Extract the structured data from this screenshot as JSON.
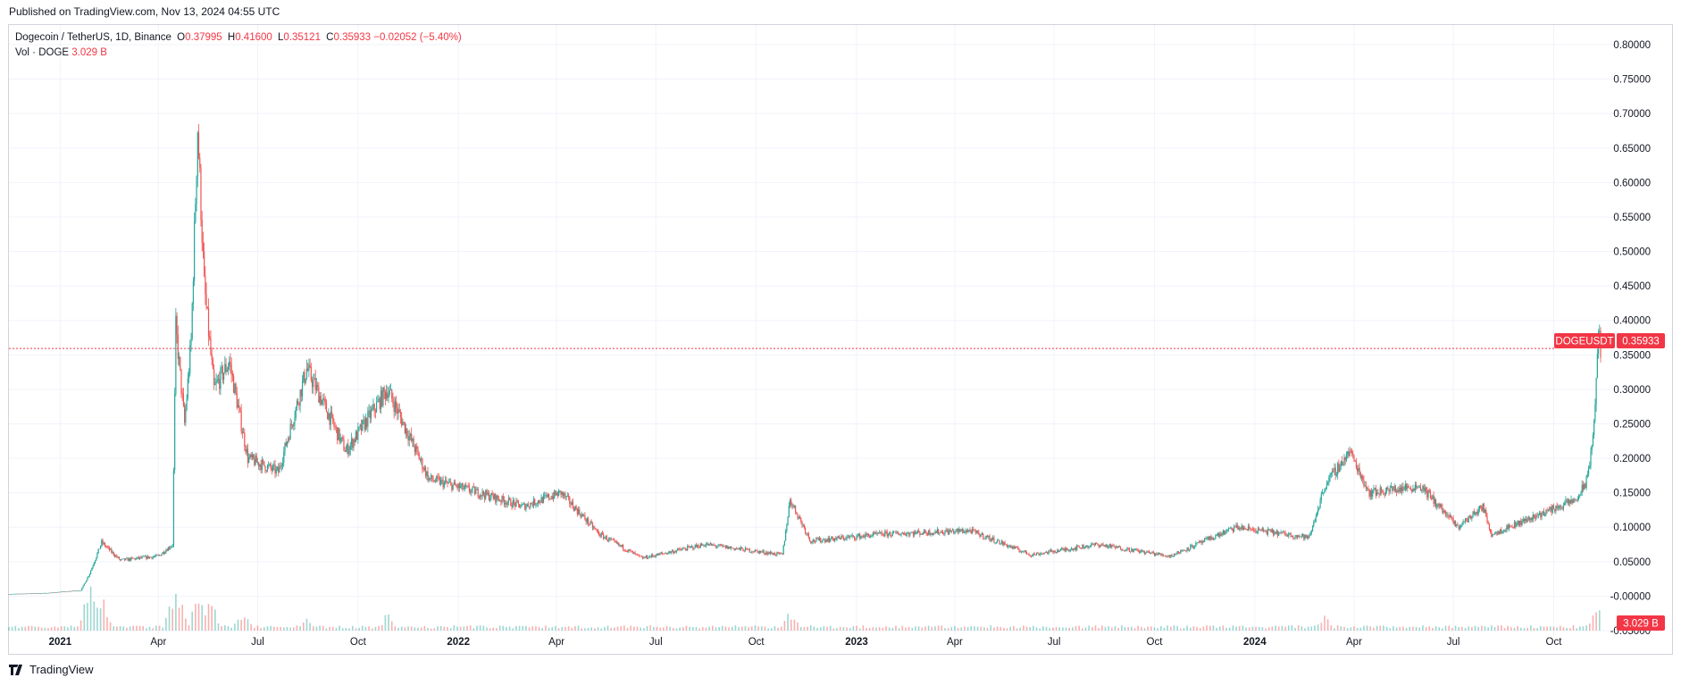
{
  "header": {
    "published": "Published on TradingView.com, Nov 13, 2024 04:55 UTC"
  },
  "legend": {
    "symbol": "Dogecoin / TetherUS, 1D, Binance",
    "open_label": "O",
    "open": "0.37995",
    "high_label": "H",
    "high": "0.41600",
    "low_label": "L",
    "low": "0.35121",
    "close_label": "C",
    "close": "0.35933",
    "change": "−0.02052 (−5.40%)",
    "vol_label": "Vol · DOGE",
    "vol_value": "3.029 B"
  },
  "footer": {
    "brand": "TradingView",
    "logo_icon": "tradingview-logo-icon"
  },
  "colors": {
    "up": "#26a69a",
    "down": "#ef5350",
    "badge": "#f23645",
    "grid": "#f0f3fa",
    "axis_text": "#131722"
  },
  "chart_data": {
    "type": "candlestick",
    "symbol": "DOGEUSDT",
    "last_price": 0.35933,
    "last_price_label": "0.35933",
    "last_volume_label": "3.029 B",
    "ylim": [
      -0.05,
      0.8
    ],
    "y_ticks": [
      "-0.05000",
      "-0.00000",
      "0.05000",
      "0.10000",
      "0.15000",
      "0.20000",
      "0.25000",
      "0.30000",
      "0.35000",
      "0.40000",
      "0.45000",
      "0.50000",
      "0.55000",
      "0.60000",
      "0.65000",
      "0.70000",
      "0.75000",
      "0.80000"
    ],
    "y_tick_values": [
      -0.05,
      0.0,
      0.05,
      0.1,
      0.15,
      0.2,
      0.25,
      0.3,
      0.35,
      0.4,
      0.45,
      0.5,
      0.55,
      0.6,
      0.65,
      0.7,
      0.75,
      0.8
    ],
    "x_range": [
      "2020-11-15",
      "2024-11-13"
    ],
    "x_ticks": [
      {
        "label": "2021",
        "date": "2021-01-01",
        "bold": true
      },
      {
        "label": "Apr",
        "date": "2021-04-01"
      },
      {
        "label": "Jul",
        "date": "2021-07-01"
      },
      {
        "label": "Oct",
        "date": "2021-10-01"
      },
      {
        "label": "2022",
        "date": "2022-01-01",
        "bold": true
      },
      {
        "label": "Apr",
        "date": "2022-04-01"
      },
      {
        "label": "Jul",
        "date": "2022-07-01"
      },
      {
        "label": "Oct",
        "date": "2022-10-01"
      },
      {
        "label": "2023",
        "date": "2023-01-01",
        "bold": true
      },
      {
        "label": "Apr",
        "date": "2023-04-01"
      },
      {
        "label": "Jul",
        "date": "2023-07-01"
      },
      {
        "label": "Oct",
        "date": "2023-10-01"
      },
      {
        "label": "2024",
        "date": "2024-01-01",
        "bold": true
      },
      {
        "label": "Apr",
        "date": "2024-04-01"
      },
      {
        "label": "Jul",
        "date": "2024-07-01"
      },
      {
        "label": "Oct",
        "date": "2024-10-01"
      }
    ],
    "price_path": [
      {
        "date": "2020-11-15",
        "close": 0.003
      },
      {
        "date": "2020-12-20",
        "close": 0.0045
      },
      {
        "date": "2021-01-20",
        "close": 0.0085
      },
      {
        "date": "2021-01-28",
        "close": 0.033
      },
      {
        "date": "2021-02-08",
        "close": 0.078
      },
      {
        "date": "2021-02-25",
        "close": 0.052
      },
      {
        "date": "2021-04-01",
        "close": 0.058
      },
      {
        "date": "2021-04-14",
        "close": 0.075
      },
      {
        "date": "2021-04-17",
        "close": 0.39
      },
      {
        "date": "2021-04-25",
        "close": 0.25
      },
      {
        "date": "2021-05-01",
        "close": 0.37
      },
      {
        "date": "2021-05-07",
        "close": 0.68
      },
      {
        "date": "2021-05-13",
        "close": 0.45
      },
      {
        "date": "2021-05-22",
        "close": 0.3
      },
      {
        "date": "2021-06-05",
        "close": 0.34
      },
      {
        "date": "2021-06-22",
        "close": 0.2
      },
      {
        "date": "2021-07-20",
        "close": 0.18
      },
      {
        "date": "2021-08-15",
        "close": 0.33
      },
      {
        "date": "2021-09-20",
        "close": 0.21
      },
      {
        "date": "2021-10-28",
        "close": 0.3
      },
      {
        "date": "2021-12-05",
        "close": 0.17
      },
      {
        "date": "2022-01-20",
        "close": 0.15
      },
      {
        "date": "2022-03-01",
        "close": 0.13
      },
      {
        "date": "2022-04-05",
        "close": 0.15
      },
      {
        "date": "2022-05-10",
        "close": 0.09
      },
      {
        "date": "2022-06-18",
        "close": 0.055
      },
      {
        "date": "2022-08-15",
        "close": 0.075
      },
      {
        "date": "2022-10-25",
        "close": 0.06
      },
      {
        "date": "2022-11-01",
        "close": 0.14
      },
      {
        "date": "2022-11-20",
        "close": 0.08
      },
      {
        "date": "2023-01-25",
        "close": 0.09
      },
      {
        "date": "2023-04-15",
        "close": 0.095
      },
      {
        "date": "2023-06-10",
        "close": 0.06
      },
      {
        "date": "2023-08-10",
        "close": 0.075
      },
      {
        "date": "2023-10-15",
        "close": 0.058
      },
      {
        "date": "2023-12-15",
        "close": 0.1
      },
      {
        "date": "2024-02-20",
        "close": 0.085
      },
      {
        "date": "2024-03-05",
        "close": 0.16
      },
      {
        "date": "2024-03-28",
        "close": 0.21
      },
      {
        "date": "2024-04-15",
        "close": 0.15
      },
      {
        "date": "2024-06-01",
        "close": 0.16
      },
      {
        "date": "2024-07-05",
        "close": 0.1
      },
      {
        "date": "2024-07-28",
        "close": 0.13
      },
      {
        "date": "2024-08-05",
        "close": 0.09
      },
      {
        "date": "2024-09-28",
        "close": 0.125
      },
      {
        "date": "2024-10-22",
        "close": 0.14
      },
      {
        "date": "2024-11-01",
        "close": 0.17
      },
      {
        "date": "2024-11-07",
        "close": 0.25
      },
      {
        "date": "2024-11-11",
        "close": 0.38
      },
      {
        "date": "2024-11-13",
        "close": 0.35933
      }
    ],
    "volume_spikes": [
      {
        "date": "2021-01-28",
        "rel": 0.9
      },
      {
        "date": "2021-02-08",
        "rel": 0.7
      },
      {
        "date": "2021-04-17",
        "rel": 1.0
      },
      {
        "date": "2021-05-08",
        "rel": 0.8
      },
      {
        "date": "2021-05-19",
        "rel": 0.6
      },
      {
        "date": "2021-06-18",
        "rel": 0.4
      },
      {
        "date": "2021-08-15",
        "rel": 0.3
      },
      {
        "date": "2021-10-28",
        "rel": 0.35
      },
      {
        "date": "2022-11-01",
        "rel": 0.4
      },
      {
        "date": "2024-03-05",
        "rel": 0.3
      },
      {
        "date": "2024-11-11",
        "rel": 0.5
      }
    ]
  }
}
